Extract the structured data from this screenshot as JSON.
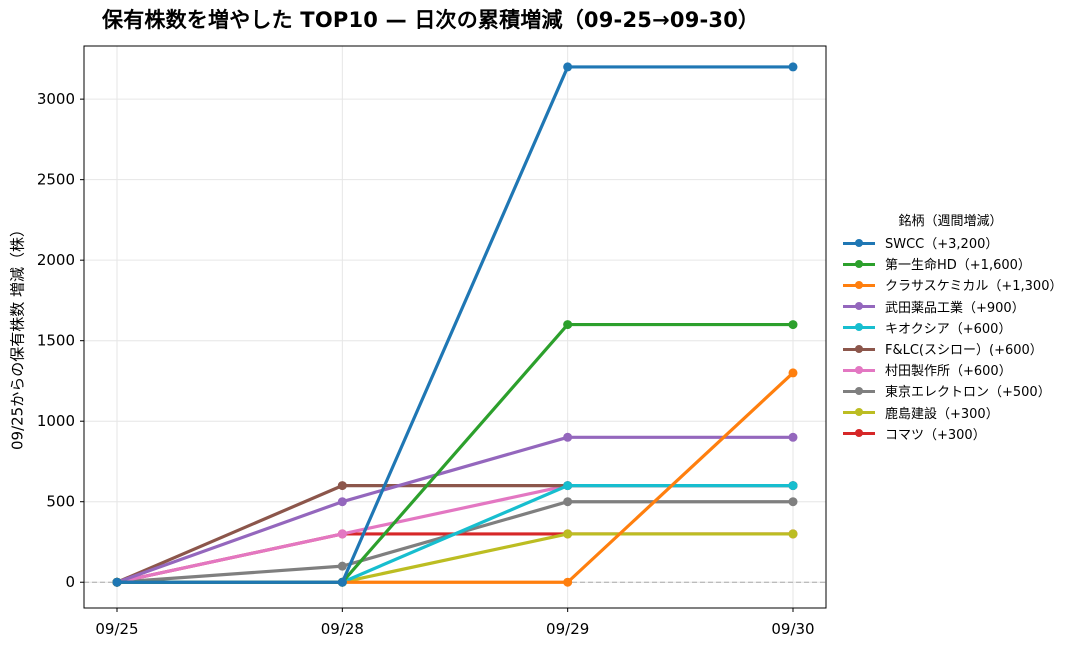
{
  "title": "保有株数を増やした TOP10 — 日次の累積増減（09-25→09-30）",
  "legend_title": "銘柄（週間増減）",
  "chart_data": {
    "type": "line",
    "title": "保有株数を増やした TOP10 — 日次の累積増減（09-25→09-30）",
    "xlabel": "",
    "ylabel": "09/25からの保有株数 増減（株）",
    "x": [
      "09/25",
      "09/28",
      "09/29",
      "09/30"
    ],
    "ylim": [
      -160,
      3330
    ],
    "yticks": [
      0,
      500,
      1000,
      1500,
      2000,
      2500,
      3000
    ],
    "grid": true,
    "zero_line": true,
    "legend_placement": "right",
    "series": [
      {
        "name": "SWCC（+3,200）",
        "color": "#1f77b4",
        "values": [
          0,
          0,
          3200,
          3200
        ]
      },
      {
        "name": "第一生命HD（+1,600）",
        "color": "#2ca02c",
        "values": [
          0,
          0,
          1600,
          1600
        ]
      },
      {
        "name": "クラサスケミカル（+1,300）",
        "color": "#ff7f0e",
        "values": [
          0,
          0,
          0,
          1300
        ]
      },
      {
        "name": "武田薬品工業（+900）",
        "color": "#9467bd",
        "values": [
          0,
          500,
          900,
          900
        ]
      },
      {
        "name": "キオクシア（+600）",
        "color": "#17becf",
        "values": [
          0,
          0,
          600,
          600
        ]
      },
      {
        "name": "F&LC(スシロー）(+600）",
        "color": "#8c564b",
        "values": [
          0,
          600,
          600,
          600
        ]
      },
      {
        "name": "村田製作所（+600）",
        "color": "#e377c2",
        "values": [
          0,
          300,
          600,
          600
        ]
      },
      {
        "name": "東京エレクトロン（+500）",
        "color": "#7f7f7f",
        "values": [
          0,
          100,
          500,
          500
        ]
      },
      {
        "name": "鹿島建設（+300）",
        "color": "#bcbd22",
        "values": [
          0,
          0,
          300,
          300
        ]
      },
      {
        "name": "コマツ（+300）",
        "color": "#d62728",
        "values": [
          0,
          300,
          300,
          300
        ]
      }
    ]
  }
}
